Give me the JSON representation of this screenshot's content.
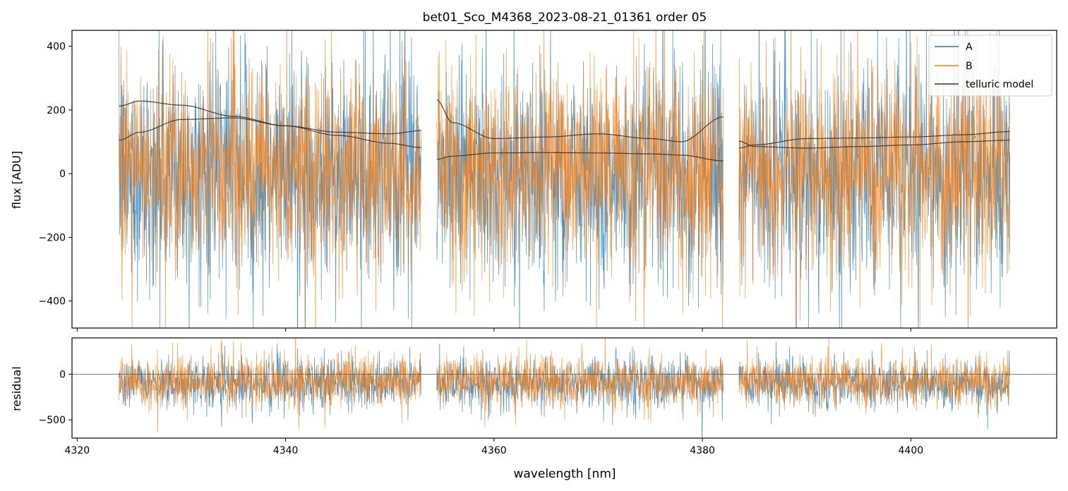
{
  "figure": {
    "title": "bet01_Sco_M4368_2023-08-21_01361  order 05",
    "xlabel": "wavelength [nm]"
  },
  "colors": {
    "A": "#1f77b4",
    "B": "#ff7f0e",
    "telluric": "#333333",
    "zero_line": "#555555"
  },
  "chart_data": [
    {
      "type": "line",
      "panel": "flux",
      "ylabel": "flux [ADU]",
      "xlim": [
        4319.5,
        4414.0
      ],
      "ylim": [
        -485,
        450
      ],
      "xticks": [
        4320,
        4340,
        4360,
        4380,
        4400
      ],
      "yticks": [
        -400,
        -200,
        0,
        200,
        400
      ],
      "grid": false,
      "legend": {
        "placement": "top-right",
        "entries": [
          "A",
          "B",
          "telluric model"
        ]
      },
      "segments": [
        [
          4324.0,
          4353.0
        ],
        [
          4354.5,
          4382.0
        ],
        [
          4383.5,
          4409.5
        ]
      ],
      "series": [
        {
          "name": "A",
          "color": "#1f77b4",
          "center": 0,
          "noise_sd": 170,
          "description": "noisy spectrum spanning roughly -485 to 450 ADU"
        },
        {
          "name": "B",
          "color": "#ff7f0e",
          "center": 10,
          "noise_sd": 160,
          "description": "noisy spectrum spanning roughly -485 to 450 ADU"
        },
        {
          "name": "telluric model",
          "color": "#333333",
          "curves": [
            {
              "x": [
                4324,
                4326,
                4330,
                4335,
                4340,
                4345,
                4350,
                4353
              ],
              "y": [
                212,
                228,
                215,
                180,
                150,
                130,
                125,
                135
              ]
            },
            {
              "x": [
                4324,
                4326,
                4330,
                4335,
                4340,
                4345,
                4350,
                4353
              ],
              "y": [
                105,
                130,
                170,
                175,
                150,
                120,
                95,
                82
              ]
            },
            {
              "x": [
                4354.5,
                4356,
                4360,
                4365,
                4370,
                4375,
                4378,
                4382
              ],
              "y": [
                232,
                160,
                110,
                115,
                125,
                110,
                100,
                178
              ]
            },
            {
              "x": [
                4354.5,
                4356,
                4360,
                4365,
                4370,
                4375,
                4378,
                4382
              ],
              "y": [
                45,
                55,
                65,
                66,
                65,
                62,
                58,
                40
              ]
            },
            {
              "x": [
                4383.5,
                4385,
                4390,
                4395,
                4400,
                4405,
                4409.5
              ],
              "y": [
                102,
                85,
                80,
                85,
                90,
                100,
                105
              ]
            },
            {
              "x": [
                4383.5,
                4385,
                4390,
                4395,
                4400,
                4405,
                4409.5
              ],
              "y": [
                80,
                90,
                110,
                112,
                115,
                122,
                132
              ]
            }
          ]
        }
      ]
    },
    {
      "type": "line",
      "panel": "residual",
      "ylabel": "residual",
      "xlim": [
        4319.5,
        4414.0
      ],
      "ylim": [
        -700,
        400
      ],
      "xticks": [
        4320,
        4340,
        4360,
        4380,
        4400
      ],
      "yticks": [
        -500,
        0
      ],
      "grid": false,
      "hline": 0,
      "segments": [
        [
          4324.0,
          4353.0
        ],
        [
          4354.5,
          4382.0
        ],
        [
          4383.5,
          4409.5
        ]
      ],
      "series": [
        {
          "name": "A",
          "color": "#1f77b4",
          "center": -100,
          "noise_sd": 130
        },
        {
          "name": "B",
          "color": "#ff7f0e",
          "center": -80,
          "noise_sd": 135
        }
      ]
    }
  ]
}
